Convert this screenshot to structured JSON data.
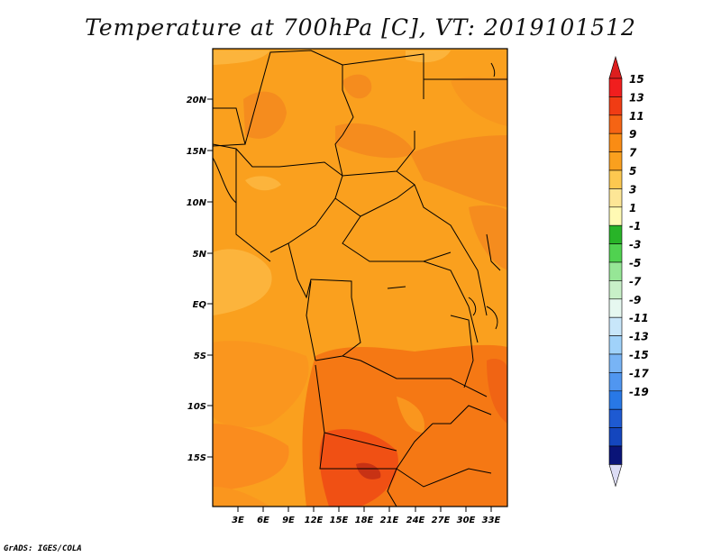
{
  "title": "Temperature at 700hPa [C], VT: 2019101512",
  "credit": "GrADS: IGES/COLA",
  "map": {
    "y_ticks": [
      "20N",
      "15N",
      "10N",
      "5N",
      "EQ",
      "5S",
      "10S",
      "15S"
    ],
    "x_ticks": [
      "3E",
      "6E",
      "9E",
      "12E",
      "15E",
      "18E",
      "21E",
      "24E",
      "27E",
      "30E",
      "33E"
    ]
  },
  "colorbar": {
    "levels": [
      {
        "label": "15",
        "color": "#f01e1e"
      },
      {
        "label": "13",
        "color": "#f03c14"
      },
      {
        "label": "11",
        "color": "#f56414"
      },
      {
        "label": "9",
        "color": "#fa8c14"
      },
      {
        "label": "7",
        "color": "#faa01e"
      },
      {
        "label": "5",
        "color": "#fcc850"
      },
      {
        "label": "3",
        "color": "#fde696"
      },
      {
        "label": "1",
        "color": "#fffab4"
      },
      {
        "label": "-1",
        "color": "#28b428"
      },
      {
        "label": "-3",
        "color": "#50d250"
      },
      {
        "label": "-5",
        "color": "#96e696"
      },
      {
        "label": "-7",
        "color": "#c8f0c8"
      },
      {
        "label": "-9",
        "color": "#e6f8f0"
      },
      {
        "label": "-11",
        "color": "#c8e6fa"
      },
      {
        "label": "-13",
        "color": "#a0d2fa"
      },
      {
        "label": "-15",
        "color": "#78b4f5"
      },
      {
        "label": "-17",
        "color": "#5096f0"
      },
      {
        "label": "-19",
        "color": "#2878e6"
      },
      {
        "label": "",
        "color": "#1e5ad2"
      },
      {
        "label": "",
        "color": "#1446be"
      },
      {
        "label": "",
        "color": "#0a1478"
      }
    ],
    "top_triangle_color": "#dc1e1e",
    "bottom_triangle_color": "#dcdcf5"
  }
}
